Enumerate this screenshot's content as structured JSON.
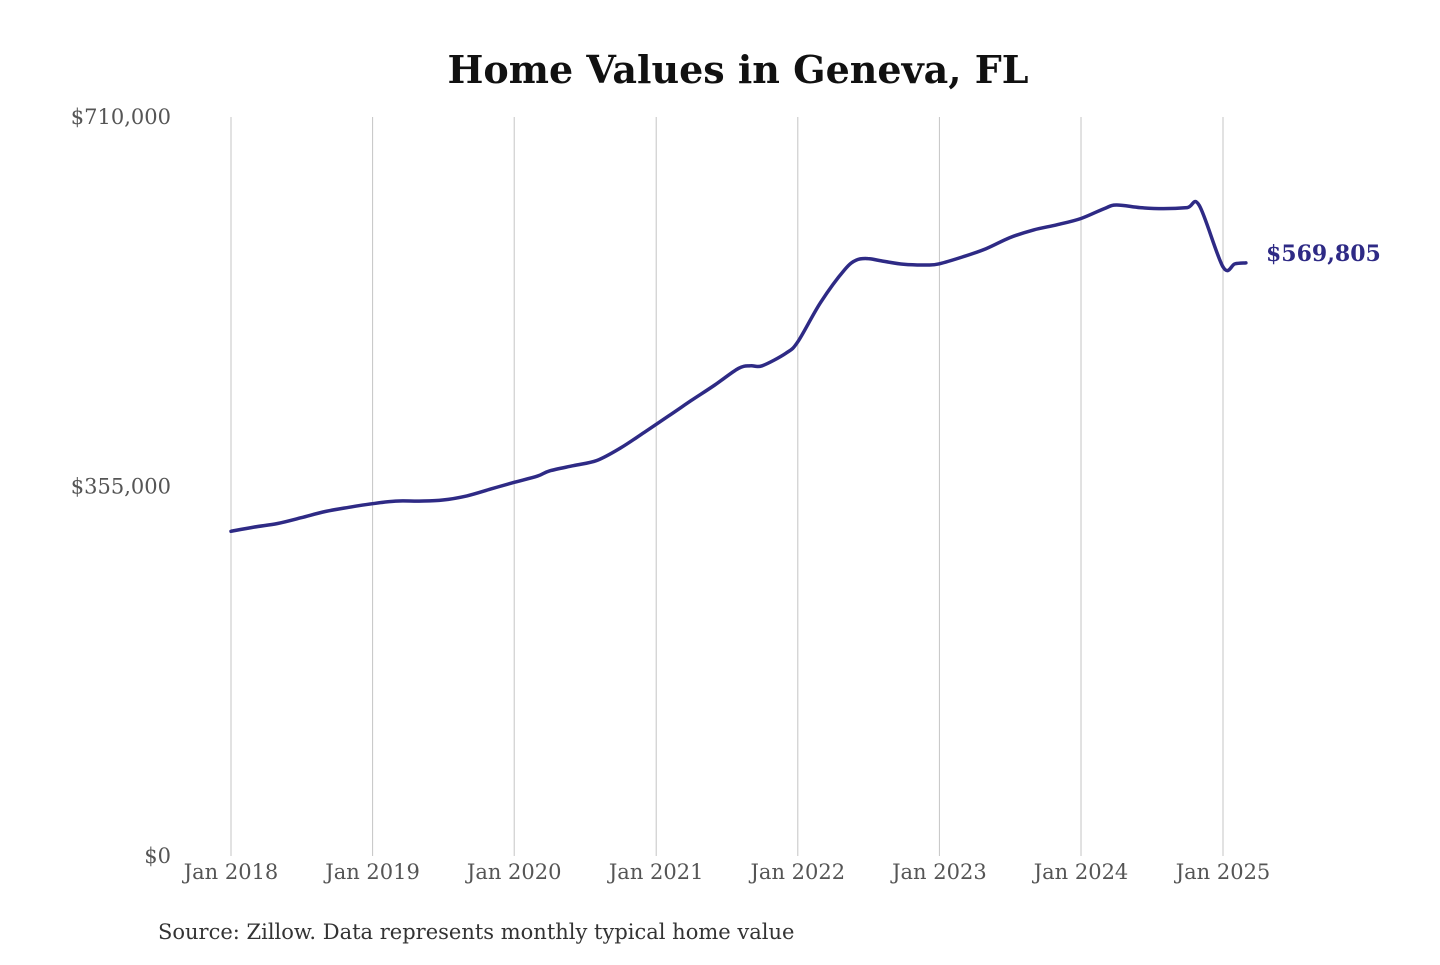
{
  "chart_data": {
    "type": "line",
    "title": "Home Values in Geneva, FL",
    "xlabel": "",
    "ylabel": "",
    "source": "Source: Zillow. Data represents monthly typical home value",
    "ylim": [
      0,
      710000
    ],
    "yticks": [
      0,
      355000,
      710000
    ],
    "ytick_labels": [
      "$0",
      "$355,000",
      "$710,000"
    ],
    "xticks": [
      "2018-01",
      "2019-01",
      "2020-01",
      "2021-01",
      "2022-01",
      "2023-01",
      "2024-01",
      "2025-01"
    ],
    "xtick_labels": [
      "Jan 2018",
      "Jan 2019",
      "Jan 2020",
      "Jan 2021",
      "Jan 2022",
      "Jan 2023",
      "Jan 2024",
      "Jan 2025"
    ],
    "grid": "vertical",
    "line_color": "#2e2a85",
    "end_label": "$569,805",
    "series": [
      {
        "x": [
          "2018-01",
          "2018-03",
          "2018-05",
          "2018-07",
          "2018-09",
          "2018-11",
          "2019-01",
          "2019-03",
          "2019-05",
          "2019-07",
          "2019-09",
          "2019-11",
          "2020-01",
          "2020-03",
          "2020-04",
          "2020-06",
          "2020-08",
          "2020-10",
          "2020-12",
          "2021-02",
          "2021-04",
          "2021-06",
          "2021-08",
          "2021-09",
          "2021-10",
          "2021-12",
          "2022-01",
          "2022-03",
          "2022-05",
          "2022-06",
          "2022-07",
          "2022-08",
          "2022-10",
          "2022-12",
          "2023-01",
          "2023-03",
          "2023-05",
          "2023-07",
          "2023-09",
          "2023-11",
          "2024-01",
          "2024-03",
          "2024-04",
          "2024-06",
          "2024-08",
          "2024-10",
          "2024-11",
          "2025-01",
          "2025-02",
          "2025-03"
        ],
        "y": [
          312000,
          316000,
          319500,
          325000,
          331000,
          335000,
          338500,
          341000,
          341000,
          342000,
          346000,
          352500,
          359000,
          365000,
          370000,
          375000,
          380000,
          392000,
          407000,
          422500,
          437500,
          452500,
          468500,
          471000,
          471000,
          483000,
          494000,
          532000,
          563000,
          572500,
          574000,
          572000,
          568500,
          567800,
          569000,
          575500,
          583500,
          594000,
          601500,
          606500,
          612500,
          622000,
          625500,
          623000,
          622000,
          623000,
          625000,
          566000,
          569000,
          569805
        ]
      }
    ]
  }
}
